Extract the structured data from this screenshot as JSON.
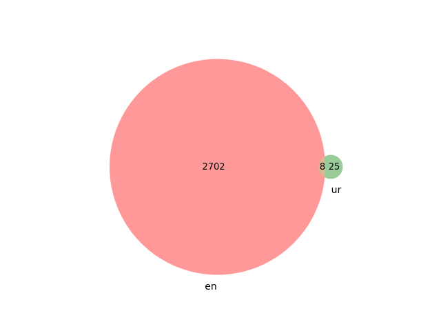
{
  "venn": {
    "sets": [
      {
        "label": "en",
        "color": "#ff9999"
      },
      {
        "label": "ur",
        "color": "#99cc99"
      }
    ],
    "overlap_color": "#d4b991",
    "regions": {
      "en_only": "2702",
      "overlap": "8",
      "ur_only": "25"
    }
  }
}
